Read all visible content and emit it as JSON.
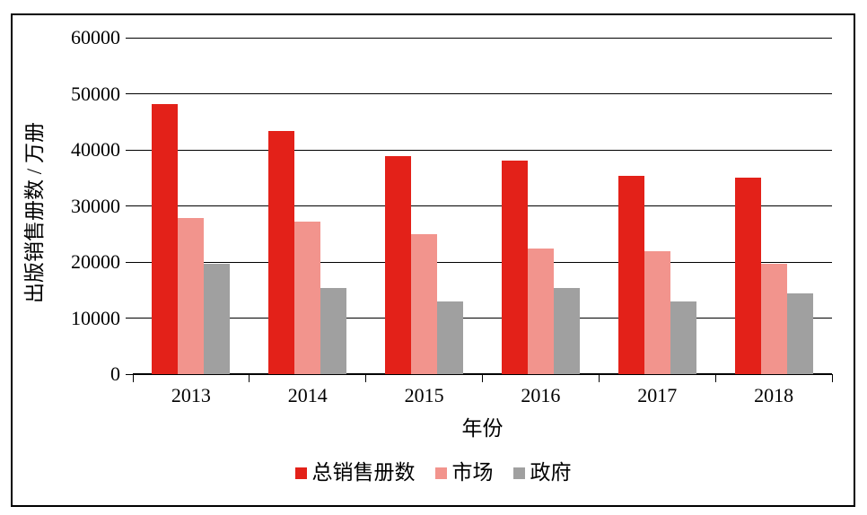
{
  "chart_data": {
    "type": "bar",
    "title": "",
    "categories": [
      "2013",
      "2014",
      "2015",
      "2016",
      "2017",
      "2018"
    ],
    "series": [
      {
        "name": "总销售册数",
        "color": "#e32119",
        "values": [
          48200,
          43400,
          38900,
          38100,
          35300,
          35100
        ]
      },
      {
        "name": "市场",
        "color": "#f2948d",
        "values": [
          27900,
          27200,
          25000,
          22400,
          21900,
          19700
        ]
      },
      {
        "name": "政府",
        "color": "#a0a0a0",
        "values": [
          19700,
          15300,
          13000,
          15300,
          13000,
          14400
        ]
      }
    ],
    "xlabel": "年份",
    "ylabel": "出版销售册数 / 万册",
    "ylim": [
      0,
      60000
    ],
    "ytick_interval": 10000,
    "yticks": [
      "0",
      "10000",
      "20000",
      "30000",
      "40000",
      "50000",
      "60000"
    ],
    "grid": "horizontal",
    "legend_position": "bottom",
    "axis_color": "#000000",
    "background_color": "#ffffff"
  }
}
